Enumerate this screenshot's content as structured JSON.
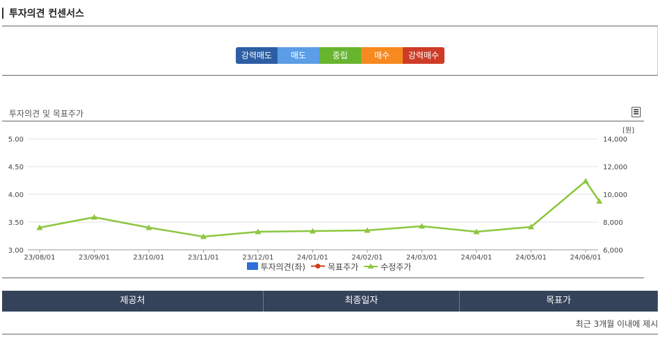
{
  "page_title": "투자의견 컨센서스",
  "opinion_scale": [
    {
      "label": "강력매도",
      "color": "#2d5ea3"
    },
    {
      "label": "매도",
      "color": "#5b9de6"
    },
    {
      "label": "중립",
      "color": "#67b52f"
    },
    {
      "label": "매수",
      "color": "#f6891f"
    },
    {
      "label": "강력매수",
      "color": "#cd3c27"
    }
  ],
  "chart_section_title": "투자의견 및 목표주가",
  "chart_data": {
    "type": "line",
    "categories": [
      "23/08/01",
      "23/09/01",
      "23/10/01",
      "23/11/01",
      "23/12/01",
      "24/01/01",
      "24/02/01",
      "24/03/01",
      "24/04/01",
      "24/05/01",
      "24/06/01"
    ],
    "y_left": {
      "range": [
        3.0,
        5.0
      ],
      "ticks": [
        "3.00",
        "3.50",
        "4.00",
        "4.50",
        "5.00"
      ]
    },
    "y_right": {
      "range": [
        6000,
        14000
      ],
      "ticks": [
        "6,000",
        "8,000",
        "10,000",
        "12,000",
        "14,000"
      ],
      "unit": "[원]"
    },
    "series": [
      {
        "name": "투자의견(좌)",
        "axis": "left",
        "color": "#2d6fd6",
        "kind": "bar",
        "points": []
      },
      {
        "name": "목표주가",
        "axis": "right",
        "color": "#cc3d1a",
        "kind": "line-circle",
        "points": []
      },
      {
        "name": "수정주가",
        "axis": "right",
        "color": "#8cc63f",
        "kind": "line-triangle",
        "points": [
          [
            0,
            7600
          ],
          [
            1,
            8350
          ],
          [
            2,
            7600
          ],
          [
            3,
            6950
          ],
          [
            4,
            7300
          ],
          [
            5,
            7350
          ],
          [
            6,
            7400
          ],
          [
            7,
            7700
          ],
          [
            8,
            7300
          ],
          [
            9,
            7650
          ],
          [
            10,
            10950
          ],
          [
            10.25,
            9500
          ]
        ]
      }
    ],
    "grid": true,
    "legend_position": "bottom"
  },
  "table": {
    "headers": [
      "제공처",
      "최종일자",
      "목표가"
    ],
    "notice": "최근 3개월 이내에 제시"
  }
}
